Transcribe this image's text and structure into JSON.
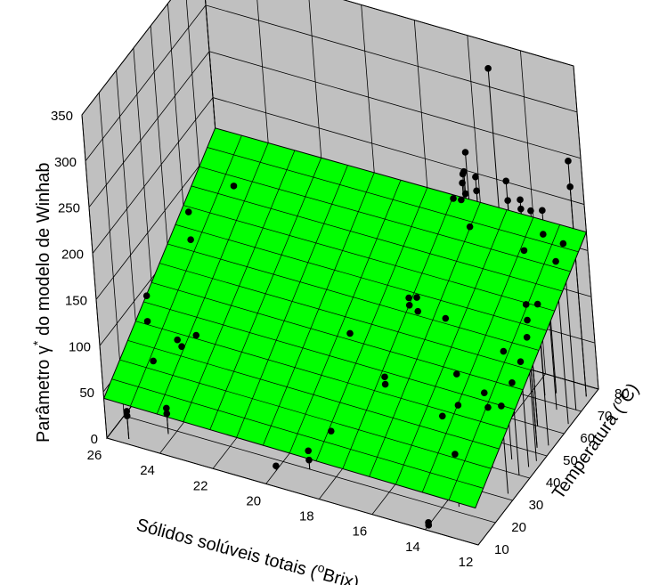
{
  "chart_data": {
    "type": "scatter",
    "subtype": "3d-scatter-with-fitted-plane",
    "title": "",
    "xlabel": "Sólidos solúveis totais (",
    "xlabel_sup": "o",
    "xlabel_tail": "Brix)",
    "ylabel": "Temperatura (",
    "ylabel_sup": "o",
    "ylabel_tail": "C)",
    "zlabel": "Parâmetro γ",
    "zlabel_sup": "*",
    "zlabel_tail": " do modelo de Winhab",
    "x_ticks": [
      "26",
      "24",
      "22",
      "20",
      "18",
      "16",
      "14",
      "12"
    ],
    "y_ticks": [
      "10",
      "20",
      "30",
      "40",
      "50",
      "60",
      "70",
      "80"
    ],
    "z_ticks": [
      "0",
      "50",
      "100",
      "150",
      "200",
      "250",
      "300",
      "350"
    ],
    "xlim": [
      12,
      26
    ],
    "ylim": [
      10,
      80
    ],
    "zlim": [
      0,
      350
    ],
    "grid": true,
    "colors": {
      "pane": "#c0c0c0",
      "plane": "#00ff00",
      "points": "#000000"
    },
    "plane": {
      "corners": [
        {
          "x": 26,
          "y": 10,
          "z": 43
        },
        {
          "x": 26,
          "y": 80,
          "z": 167
        },
        {
          "x": 12,
          "y": 80,
          "z": 170
        },
        {
          "x": 12,
          "y": 10,
          "z": 40
        }
      ]
    },
    "points": [
      {
        "x": 25.3,
        "y": 12,
        "z": 30
      },
      {
        "x": 25.3,
        "y": 12,
        "z": 25
      },
      {
        "x": 24.2,
        "y": 18,
        "z": 28
      },
      {
        "x": 24.2,
        "y": 18,
        "z": 22
      },
      {
        "x": 25,
        "y": 24,
        "z": 58
      },
      {
        "x": 25.4,
        "y": 28,
        "z": 88
      },
      {
        "x": 25.5,
        "y": 30,
        "z": 110
      },
      {
        "x": 24.3,
        "y": 28,
        "z": 77
      },
      {
        "x": 24,
        "y": 34,
        "z": 70
      },
      {
        "x": 24.3,
        "y": 30,
        "z": 65
      },
      {
        "x": 24.8,
        "y": 46,
        "z": 138
      },
      {
        "x": 24.8,
        "y": 46,
        "z": 168
      },
      {
        "x": 24.0,
        "y": 60,
        "z": 169
      },
      {
        "x": 18.5,
        "y": 40,
        "z": 103
      },
      {
        "x": 19,
        "y": 20,
        "z": 20
      },
      {
        "x": 19,
        "y": 20,
        "z": 10
      },
      {
        "x": 20,
        "y": 16,
        "z": 5
      },
      {
        "x": 18.5,
        "y": 26,
        "z": 31
      },
      {
        "x": 17,
        "y": 36,
        "z": 78
      },
      {
        "x": 17,
        "y": 36,
        "z": 70
      },
      {
        "x": 17,
        "y": 52,
        "z": 117
      },
      {
        "x": 17,
        "y": 52,
        "z": 125
      },
      {
        "x": 16.4,
        "y": 48,
        "z": 125
      },
      {
        "x": 16.4,
        "y": 48,
        "z": 140
      },
      {
        "x": 16.3,
        "y": 70,
        "z": 195
      },
      {
        "x": 16.2,
        "y": 74,
        "z": 203
      },
      {
        "x": 16.3,
        "y": 76,
        "z": 207
      },
      {
        "x": 16.4,
        "y": 78,
        "z": 204
      },
      {
        "x": 16.4,
        "y": 78,
        "z": 180
      },
      {
        "x": 16.0,
        "y": 70,
        "z": 196
      },
      {
        "x": 15.6,
        "y": 68,
        "z": 175
      },
      {
        "x": 15.5,
        "y": 50,
        "z": 120
      },
      {
        "x": 14.8,
        "y": 44,
        "z": 80
      },
      {
        "x": 14.5,
        "y": 74,
        "z": 198
      },
      {
        "x": 14.8,
        "y": 78,
        "z": 207
      },
      {
        "x": 13.2,
        "y": 74,
        "z": 198
      },
      {
        "x": 13.5,
        "y": 72,
        "z": 200
      },
      {
        "x": 13.0,
        "y": 60,
        "z": 190
      },
      {
        "x": 13.0,
        "y": 60,
        "z": 235
      },
      {
        "x": 13.0,
        "y": 60,
        "z": 245
      },
      {
        "x": 15.3,
        "y": 80,
        "z": 320
      },
      {
        "x": 15.7,
        "y": 70,
        "z": 250
      },
      {
        "x": 14.8,
        "y": 62,
        "z": 250
      },
      {
        "x": 14.8,
        "y": 62,
        "z": 235
      },
      {
        "x": 12.2,
        "y": 76,
        "z": 255
      },
      {
        "x": 12.2,
        "y": 76,
        "z": 227
      },
      {
        "x": 14.6,
        "y": 32,
        "z": 65
      },
      {
        "x": 14.4,
        "y": 38,
        "z": 64
      },
      {
        "x": 13.5,
        "y": 40,
        "z": 80
      },
      {
        "x": 13.4,
        "y": 40,
        "z": 65
      },
      {
        "x": 12.3,
        "y": 44,
        "z": 114
      },
      {
        "x": 12.2,
        "y": 47,
        "z": 134
      },
      {
        "x": 12.3,
        "y": 32,
        "z": 95
      },
      {
        "x": 13.5,
        "y": 22,
        "z": 57
      },
      {
        "x": 14.0,
        "y": 12,
        "z": 3
      },
      {
        "x": 14.0,
        "y": 12,
        "z": 0
      },
      {
        "x": 13.0,
        "y": 45,
        "z": 117
      },
      {
        "x": 12.4,
        "y": 40,
        "z": 100
      },
      {
        "x": 12.5,
        "y": 52,
        "z": 155
      },
      {
        "x": 12.5,
        "y": 52,
        "z": 138
      },
      {
        "x": 12.2,
        "y": 54,
        "z": 153
      },
      {
        "x": 12.1,
        "y": 64,
        "z": 176
      },
      {
        "x": 12.8,
        "y": 68,
        "z": 190
      },
      {
        "x": 12.2,
        "y": 70,
        "z": 180
      }
    ]
  }
}
